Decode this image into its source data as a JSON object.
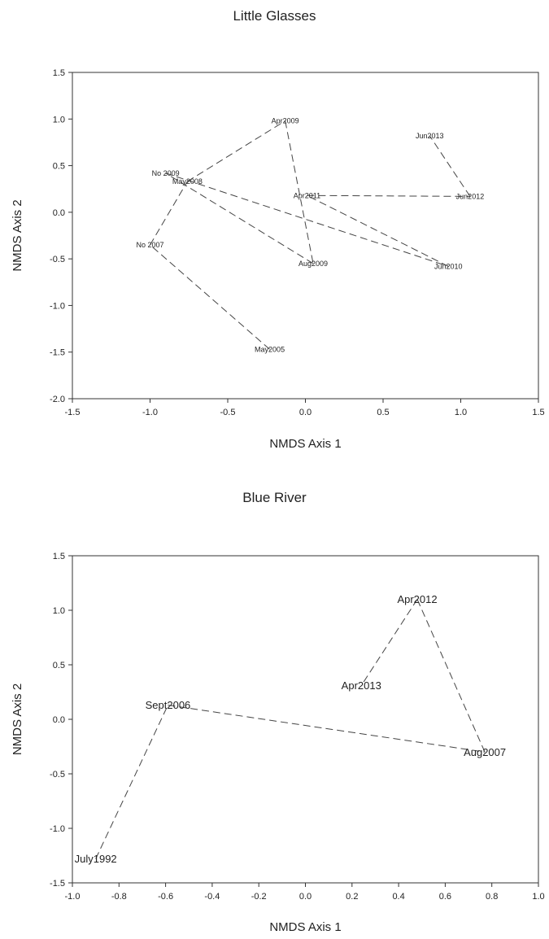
{
  "chart_data": [
    {
      "type": "scatter",
      "title": "Little Glasses",
      "xlabel": "NMDS Axis 1",
      "ylabel": "NMDS Axis 2",
      "xlim": [
        -1.5,
        1.5
      ],
      "ylim": [
        -2.0,
        1.5
      ],
      "xticks": [
        "-1.5",
        "-1.0",
        "-0.5",
        "0.0",
        "0.5",
        "1.0",
        "1.5"
      ],
      "yticks": [
        "1.5",
        "1.0",
        "0.5",
        "0.0",
        "-0.5",
        "-1.0",
        "-1.5",
        "-2.0"
      ],
      "grid": false,
      "points": [
        {
          "label": "Apr2009",
          "x": -0.13,
          "y": 0.98
        },
        {
          "label": "Jun2013",
          "x": 0.8,
          "y": 0.82
        },
        {
          "label": "Nov2009",
          "x": -0.9,
          "y": 0.42
        },
        {
          "label": "May2008",
          "x": -0.76,
          "y": 0.33
        },
        {
          "label": "Apr2011",
          "x": 0.01,
          "y": 0.18
        },
        {
          "label": "Jun2012",
          "x": 1.06,
          "y": 0.17
        },
        {
          "label": "Nov2007",
          "x": -1.0,
          "y": -0.35
        },
        {
          "label": "Aug2009",
          "x": 0.05,
          "y": -0.55
        },
        {
          "label": "Jun2010",
          "x": 0.92,
          "y": -0.58
        },
        {
          "label": "May2005",
          "x": -0.23,
          "y": -1.47
        }
      ],
      "label_prints": [
        "Apr2009",
        "Jun2013",
        "No 2009",
        "May2008",
        "Apr2011",
        "Jun2012",
        "No 2007",
        "Aug2009",
        "Jun2010",
        "May2005"
      ],
      "segments": [
        [
          "May2005",
          "Nov2007"
        ],
        [
          "Nov2007",
          "May2008"
        ],
        [
          "May2008",
          "Apr2009"
        ],
        [
          "Apr2009",
          "Aug2009"
        ],
        [
          "Aug2009",
          "Nov2009"
        ],
        [
          "Nov2009",
          "Jun2010"
        ],
        [
          "Jun2010",
          "Apr2011"
        ],
        [
          "Apr2011",
          "Jun2012"
        ],
        [
          "Jun2012",
          "Jun2013"
        ]
      ]
    },
    {
      "type": "scatter",
      "title": "Blue River",
      "xlabel": "NMDS Axis 1",
      "ylabel": "NMDS Axis 2",
      "xlim": [
        -1.0,
        1.0
      ],
      "ylim": [
        -1.5,
        1.5
      ],
      "xticks": [
        "-1.0",
        "-0.8",
        "-0.6",
        "-0.4",
        "-0.2",
        "0.0",
        "0.2",
        "0.4",
        "0.6",
        "0.8",
        "1.0"
      ],
      "yticks": [
        "1.5",
        "1.0",
        "0.5",
        "0.0",
        "-0.5",
        "-1.0",
        "-1.5"
      ],
      "grid": false,
      "points": [
        {
          "label": "Apr2012",
          "x": 0.48,
          "y": 1.1
        },
        {
          "label": "Apr2013",
          "x": 0.24,
          "y": 0.31
        },
        {
          "label": "Sept2006",
          "x": -0.59,
          "y": 0.13
        },
        {
          "label": "Aug2007",
          "x": 0.77,
          "y": -0.3
        },
        {
          "label": "July1992",
          "x": -0.9,
          "y": -1.28
        }
      ],
      "segments": [
        [
          "July1992",
          "Sept2006"
        ],
        [
          "Sept2006",
          "Aug2007"
        ],
        [
          "Aug2007",
          "Apr2012"
        ],
        [
          "Apr2012",
          "Apr2013"
        ]
      ]
    }
  ]
}
